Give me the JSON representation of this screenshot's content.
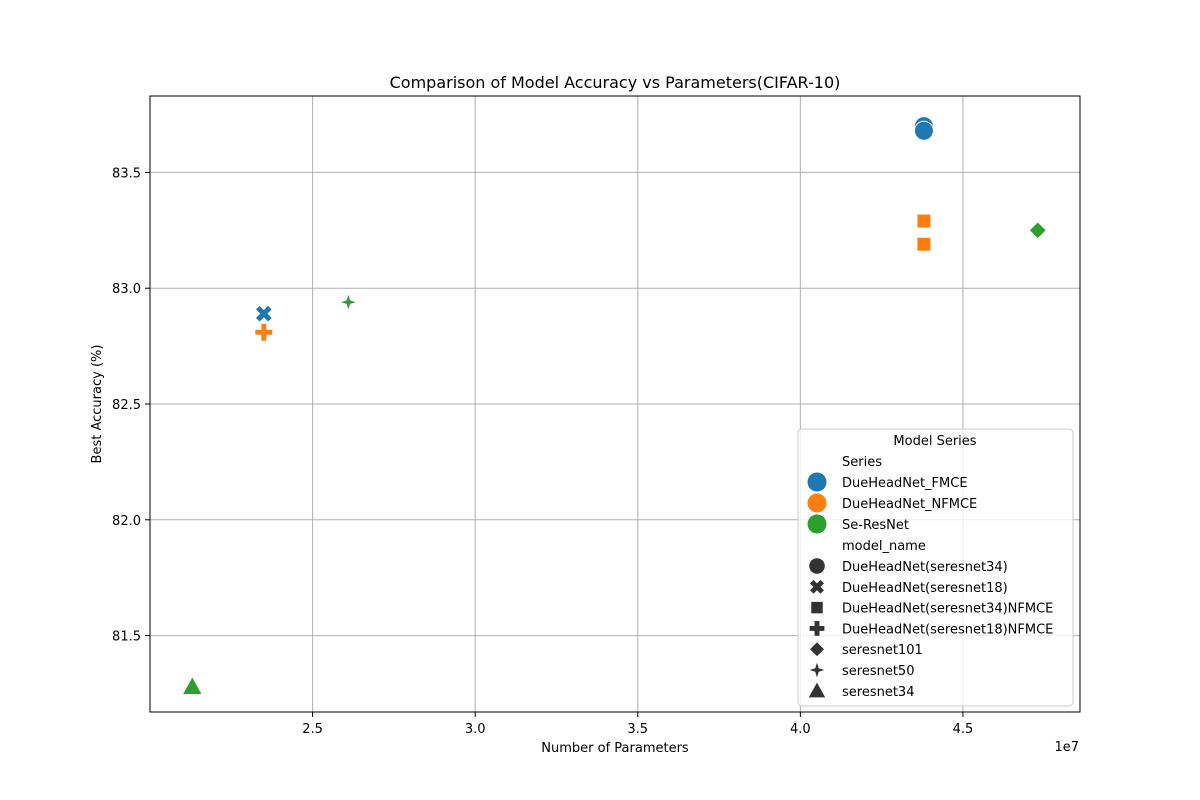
{
  "chart_data": {
    "type": "scatter",
    "title": "Comparison of Model Accuracy vs Parameters(CIFAR-10)",
    "xlabel": "Number of Parameters",
    "ylabel": "Best Accuracy (%)",
    "x_offset_label": "1e7",
    "xlim": [
      20000000,
      48600000
    ],
    "ylim": [
      81.17,
      83.83
    ],
    "xticks": [
      25000000,
      30000000,
      35000000,
      40000000,
      45000000
    ],
    "xtick_labels": [
      "2.5",
      "3.0",
      "3.5",
      "4.0",
      "4.5"
    ],
    "yticks": [
      81.5,
      82.0,
      82.5,
      83.0,
      83.5
    ],
    "ytick_labels": [
      "81.5",
      "82.0",
      "82.5",
      "83.0",
      "83.5"
    ],
    "grid": true,
    "legend_position": "lower-right",
    "legend": {
      "title": "Model Series",
      "hue_title": "Series",
      "style_title": "model_name",
      "series": [
        {
          "name": "DueHeadNet_FMCE",
          "color": "#1f77b4"
        },
        {
          "name": "DueHeadNet_NFMCE",
          "color": "#ff7f0e"
        },
        {
          "name": "Se-ResNet",
          "color": "#2ca02c"
        }
      ],
      "models": [
        {
          "name": "DueHeadNet(seresnet34)",
          "marker": "circle"
        },
        {
          "name": "DueHeadNet(seresnet18)",
          "marker": "x"
        },
        {
          "name": "DueHeadNet(seresnet34)NFMCE",
          "marker": "square"
        },
        {
          "name": "DueHeadNet(seresnet18)NFMCE",
          "marker": "plus"
        },
        {
          "name": "seresnet101",
          "marker": "diamond"
        },
        {
          "name": "seresnet50",
          "marker": "star"
        },
        {
          "name": "seresnet34",
          "marker": "triangle"
        }
      ]
    },
    "points": [
      {
        "series": "DueHeadNet_FMCE",
        "model": "DueHeadNet(seresnet34)",
        "x": 43800000,
        "y": 83.7
      },
      {
        "series": "DueHeadNet_FMCE",
        "model": "DueHeadNet(seresnet34)",
        "x": 43800000,
        "y": 83.68
      },
      {
        "series": "DueHeadNet_FMCE",
        "model": "DueHeadNet(seresnet18)",
        "x": 23500000,
        "y": 82.89
      },
      {
        "series": "DueHeadNet_NFMCE",
        "model": "DueHeadNet(seresnet34)NFMCE",
        "x": 43800000,
        "y": 83.29
      },
      {
        "series": "DueHeadNet_NFMCE",
        "model": "DueHeadNet(seresnet34)NFMCE",
        "x": 43800000,
        "y": 83.19
      },
      {
        "series": "DueHeadNet_NFMCE",
        "model": "DueHeadNet(seresnet18)NFMCE",
        "x": 23500000,
        "y": 82.81
      },
      {
        "series": "Se-ResNet",
        "model": "seresnet101",
        "x": 47300000,
        "y": 83.25
      },
      {
        "series": "Se-ResNet",
        "model": "seresnet50",
        "x": 26100000,
        "y": 82.94
      },
      {
        "series": "Se-ResNet",
        "model": "seresnet34",
        "x": 21300000,
        "y": 81.28
      }
    ]
  }
}
